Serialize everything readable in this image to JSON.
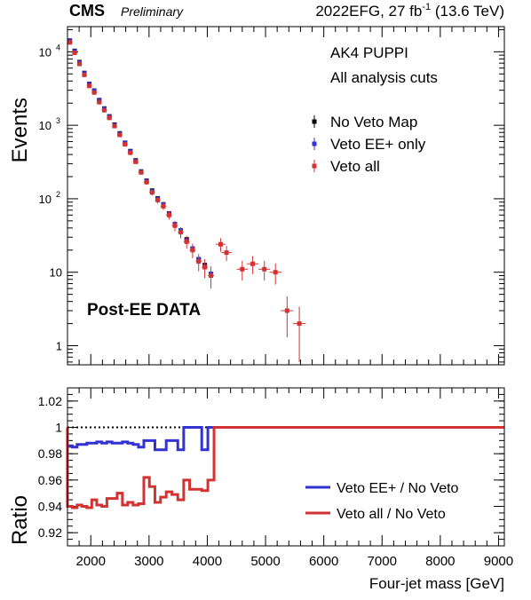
{
  "header": {
    "experiment": "CMS",
    "status": "Preliminary",
    "lumi_prefix": "2022EFG, 27 fb",
    "lumi_exponent": "-1",
    "energy": " (13.6 TeV)"
  },
  "chart_data": [
    {
      "type": "scatter",
      "panel": "main",
      "ylabel": "Events",
      "yscale": "log",
      "ylim": [
        0.55,
        22000
      ],
      "xlim": [
        1600,
        9100
      ],
      "y_tick_labels": [
        "10^4",
        "10^3",
        "10^2",
        "10",
        "1"
      ],
      "annotations": [
        "AK4 PUPPI",
        "All analysis cuts",
        "Post-EE DATA"
      ],
      "legend_position": "top-right",
      "series": [
        {
          "name": "No Veto Map",
          "color": "#000000",
          "marker": "square",
          "x": [
            1640,
            1723,
            1806,
            1890,
            1974,
            2059,
            2145,
            2232,
            2319,
            2408,
            2497,
            2588,
            2679,
            2771,
            2864,
            2958,
            3053,
            3149,
            3246,
            3344,
            3444,
            3544,
            3646,
            3748,
            3852,
            3957,
            4063
          ],
          "values": [
            14200,
            10300,
            7250,
            5150,
            3650,
            2960,
            2200,
            1690,
            1320,
            1020,
            776,
            578,
            445,
            332,
            235,
            176,
            129,
            101,
            84,
            63,
            45,
            37,
            28,
            21,
            15,
            12.5,
            9.5
          ]
        },
        {
          "name": "Veto EE+ only",
          "color": "#3232d2",
          "marker": "square",
          "x": [
            1640,
            1723,
            1806,
            1890,
            1974,
            2059,
            2145,
            2232,
            2319,
            2408,
            2497,
            2588,
            2679,
            2771,
            2864,
            2958,
            3053,
            3149,
            3246,
            3344,
            3444,
            3544,
            3646,
            3748,
            3852,
            3957,
            4063
          ],
          "values": [
            14000,
            10150,
            7150,
            5080,
            3600,
            2930,
            2180,
            1670,
            1300,
            1000,
            762,
            574,
            439,
            325,
            232,
            174,
            126,
            99,
            83,
            62,
            45,
            37,
            27,
            21,
            15,
            12,
            9.5
          ]
        },
        {
          "name": "Veto all",
          "color": "#d23232",
          "marker": "square",
          "x": [
            1640,
            1723,
            1806,
            1890,
            1974,
            2059,
            2145,
            2232,
            2319,
            2408,
            2497,
            2588,
            2679,
            2771,
            2864,
            2958,
            3053,
            3149,
            3246,
            3344,
            3444,
            3544,
            3646,
            3748,
            3852,
            3957,
            4063,
            4230,
            4330,
            4600,
            4780,
            4980,
            5170,
            5370,
            5580
          ],
          "values": [
            13400,
            9700,
            6830,
            4850,
            3430,
            2790,
            2060,
            1600,
            1260,
            975,
            738,
            550,
            422,
            318,
            228,
            168,
            122,
            96,
            79,
            60,
            43,
            35,
            26,
            20,
            14,
            11.7,
            9,
            24,
            18.5,
            11,
            13,
            11,
            10,
            3,
            2
          ],
          "yerr": [
            120,
            98,
            83,
            70,
            59,
            53,
            45,
            40,
            35,
            31,
            27,
            23,
            21,
            18,
            15,
            13,
            11,
            10,
            9,
            8,
            7,
            6,
            5,
            4.5,
            3.7,
            3.4,
            3,
            5,
            4.3,
            3.3,
            3.6,
            3.3,
            3.2,
            1.7,
            1.4
          ],
          "xerr": [
            42,
            42,
            42,
            42,
            43,
            43,
            43,
            44,
            44,
            44,
            45,
            45,
            46,
            46,
            47,
            47,
            48,
            48,
            49,
            49,
            50,
            51,
            51,
            52,
            52,
            53,
            53,
            85,
            90,
            95,
            98,
            100,
            104,
            107,
            110
          ]
        }
      ]
    },
    {
      "type": "line",
      "panel": "ratio",
      "xlabel": "Four-jet mass [GeV]",
      "ylabel": "Ratio",
      "xlim": [
        1600,
        9100
      ],
      "ylim": [
        0.91,
        1.03
      ],
      "x_tick_labels": [
        "2000",
        "3000",
        "4000",
        "5000",
        "6000",
        "7000",
        "8000",
        "9000"
      ],
      "y_tick_labels": [
        "1.02",
        "1",
        "0.98",
        "0.96",
        "0.94",
        "0.92"
      ],
      "reference_line": 1.0,
      "legend_position": "bottom-right",
      "bin_edges": [
        1600,
        1682,
        1765,
        1848,
        1932,
        2017,
        2102,
        2189,
        2276,
        2364,
        2453,
        2543,
        2633,
        2725,
        2818,
        2911,
        3006,
        3101,
        3197,
        3295,
        3393,
        3494,
        3595,
        3697,
        3800,
        3905,
        4010,
        4116,
        9100
      ],
      "series": [
        {
          "name": "Veto EE+ / No Veto",
          "color": "#3232d2",
          "values": [
            0.986,
            0.985,
            0.987,
            0.987,
            0.988,
            0.988,
            0.989,
            0.988,
            0.989,
            0.988,
            0.988,
            0.989,
            0.988,
            0.987,
            0.985,
            0.99,
            0.99,
            0.983,
            0.983,
            0.99,
            0.99,
            0.983,
            1.0,
            1.0,
            1.0,
            0.983,
            1.0,
            1.0
          ]
        },
        {
          "name": "Veto all / No Veto",
          "color": "#d23232",
          "values": [
            0.94,
            0.939,
            0.941,
            0.94,
            0.939,
            0.945,
            0.941,
            0.94,
            0.946,
            0.946,
            0.95,
            0.941,
            0.943,
            0.941,
            0.942,
            0.962,
            0.955,
            0.943,
            0.947,
            0.951,
            0.949,
            0.945,
            0.96,
            0.953,
            0.953,
            0.952,
            0.96,
            1.0
          ]
        }
      ]
    }
  ]
}
